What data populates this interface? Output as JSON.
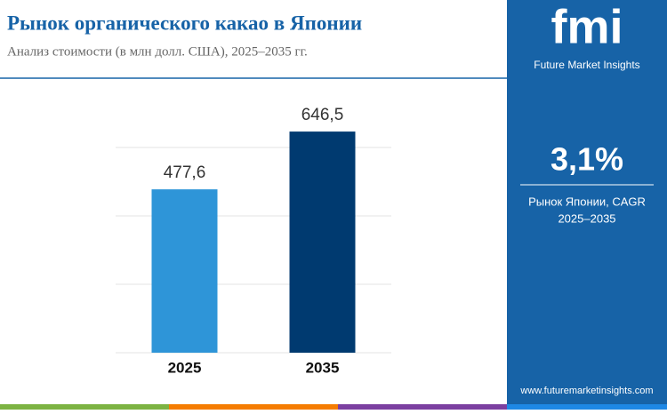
{
  "chart_data": {
    "type": "bar",
    "title": "Рынок органического какао в Японии",
    "subtitle": "Анализ стоимости (в млн долл. США), 2025–2035 гг.",
    "categories": [
      "2025",
      "2035"
    ],
    "values": [
      477.6,
      646.5
    ],
    "value_labels": [
      "477,6",
      "646,5"
    ],
    "colors": [
      "#2e95d8",
      "#003a70"
    ],
    "ylim": [
      0,
      700
    ],
    "yticks": [
      0,
      200,
      400,
      600
    ],
    "grid": true
  },
  "sidebar": {
    "logo": "fmi",
    "brand": "Future Market Insights",
    "cagr": "3,1%",
    "cagr_label": "Рынок Японии, CAGR",
    "period": "2025–2035",
    "website": "www.futuremarketinsights.com"
  }
}
